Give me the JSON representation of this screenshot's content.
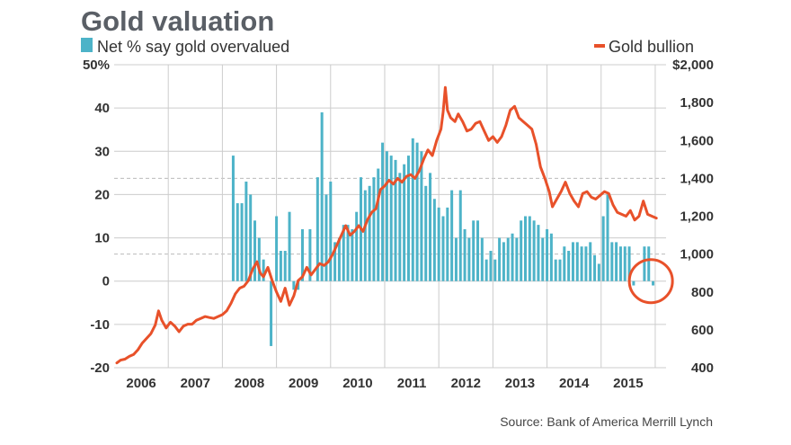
{
  "chart_data": {
    "type": "bar+line",
    "title": "Gold valuation",
    "source": "Source: Bank of America Merrill Lynch",
    "legend": {
      "bars": "Net % say gold overvalued",
      "line": "Gold bullion",
      "placement": "top"
    },
    "colors": {
      "bars": "#4db3c8",
      "line": "#e8512a",
      "title": "#5a5f66",
      "grid": "#cccccc",
      "highlight_circle": "#e8512a"
    },
    "x_axis": {
      "range": [
        2005.5,
        2015.7
      ],
      "ticks": [
        {
          "label": "2006",
          "x": 2006.0
        },
        {
          "label": "2007",
          "x": 2007.0
        },
        {
          "label": "2008",
          "x": 2008.0
        },
        {
          "label": "2009",
          "x": 2009.0
        },
        {
          "label": "2010",
          "x": 2010.0
        },
        {
          "label": "2011",
          "x": 2011.0
        },
        {
          "label": "2012",
          "x": 2012.0
        },
        {
          "label": "2013",
          "x": 2013.0
        },
        {
          "label": "2014",
          "x": 2014.0
        },
        {
          "label": "2015",
          "x": 2015.0
        }
      ]
    },
    "left_axis": {
      "range": [
        -20,
        50
      ],
      "ticks": [
        {
          "label": "50%",
          "v": 50
        },
        {
          "label": "40",
          "v": 40
        },
        {
          "label": "30",
          "v": 30
        },
        {
          "label": "20",
          "v": 20
        },
        {
          "label": "10",
          "v": 10
        },
        {
          "label": "0",
          "v": 0
        },
        {
          "label": "-10",
          "v": -10
        },
        {
          "label": "-20",
          "v": -20
        }
      ]
    },
    "right_axis": {
      "range": [
        400,
        2000
      ],
      "ticks": [
        {
          "label": "$2,000",
          "v": 2000
        },
        {
          "label": "1,800",
          "v": 1800
        },
        {
          "label": "1,600",
          "v": 1600
        },
        {
          "label": "1,400",
          "v": 1400
        },
        {
          "label": "1,200",
          "v": 1200
        },
        {
          "label": "1,000",
          "v": 1000
        },
        {
          "label": "800",
          "v": 800
        },
        {
          "label": "600",
          "v": 600
        },
        {
          "label": "400",
          "v": 400
        }
      ]
    },
    "bars": [
      [
        2007.7,
        29
      ],
      [
        2007.78,
        18
      ],
      [
        2007.86,
        18
      ],
      [
        2007.94,
        23
      ],
      [
        2008.02,
        20
      ],
      [
        2008.1,
        14
      ],
      [
        2008.18,
        10
      ],
      [
        2008.26,
        5
      ],
      [
        2008.4,
        -15
      ],
      [
        2008.5,
        15
      ],
      [
        2008.58,
        7
      ],
      [
        2008.66,
        7
      ],
      [
        2008.74,
        16
      ],
      [
        2008.82,
        -2
      ],
      [
        2008.9,
        -2
      ],
      [
        2008.98,
        12
      ],
      [
        2009.12,
        12
      ],
      [
        2009.26,
        24
      ],
      [
        2009.34,
        39
      ],
      [
        2009.42,
        20
      ],
      [
        2009.5,
        23
      ],
      [
        2009.58,
        9
      ],
      [
        2009.66,
        10
      ],
      [
        2009.74,
        13
      ],
      [
        2009.82,
        13
      ],
      [
        2009.9,
        12
      ],
      [
        2009.98,
        16
      ],
      [
        2010.06,
        24
      ],
      [
        2010.14,
        21
      ],
      [
        2010.22,
        22
      ],
      [
        2010.3,
        24
      ],
      [
        2010.38,
        26
      ],
      [
        2010.46,
        32
      ],
      [
        2010.54,
        30
      ],
      [
        2010.62,
        29
      ],
      [
        2010.7,
        28
      ],
      [
        2010.78,
        25
      ],
      [
        2010.86,
        27
      ],
      [
        2010.94,
        29
      ],
      [
        2011.02,
        33
      ],
      [
        2011.1,
        32
      ],
      [
        2011.18,
        30
      ],
      [
        2011.26,
        22
      ],
      [
        2011.34,
        25
      ],
      [
        2011.42,
        19
      ],
      [
        2011.5,
        17
      ],
      [
        2011.58,
        15
      ],
      [
        2011.66,
        17
      ],
      [
        2011.74,
        21
      ],
      [
        2011.82,
        10
      ],
      [
        2011.9,
        21
      ],
      [
        2011.98,
        12
      ],
      [
        2012.06,
        10
      ],
      [
        2012.14,
        14
      ],
      [
        2012.22,
        14
      ],
      [
        2012.3,
        10
      ],
      [
        2012.38,
        5
      ],
      [
        2012.46,
        7
      ],
      [
        2012.54,
        5
      ],
      [
        2012.62,
        10
      ],
      [
        2012.7,
        9
      ],
      [
        2012.78,
        10
      ],
      [
        2012.86,
        11
      ],
      [
        2012.94,
        10
      ],
      [
        2013.02,
        14
      ],
      [
        2013.1,
        15
      ],
      [
        2013.18,
        15
      ],
      [
        2013.26,
        14
      ],
      [
        2013.34,
        13
      ],
      [
        2013.42,
        10
      ],
      [
        2013.5,
        12
      ],
      [
        2013.58,
        11
      ],
      [
        2013.66,
        5
      ],
      [
        2013.74,
        5
      ],
      [
        2013.82,
        8
      ],
      [
        2013.9,
        7
      ],
      [
        2013.98,
        9
      ],
      [
        2014.06,
        9
      ],
      [
        2014.14,
        8
      ],
      [
        2014.22,
        8
      ],
      [
        2014.3,
        9
      ],
      [
        2014.38,
        6
      ],
      [
        2014.46,
        4
      ],
      [
        2014.54,
        15
      ],
      [
        2014.62,
        20
      ],
      [
        2014.7,
        9
      ],
      [
        2014.78,
        9
      ],
      [
        2014.86,
        8
      ],
      [
        2014.94,
        8
      ],
      [
        2015.02,
        8
      ],
      [
        2015.1,
        -1
      ],
      [
        2015.3,
        8
      ],
      [
        2015.38,
        8
      ],
      [
        2015.46,
        -1
      ]
    ],
    "line": [
      [
        2005.55,
        425
      ],
      [
        2005.62,
        440
      ],
      [
        2005.7,
        445
      ],
      [
        2005.78,
        460
      ],
      [
        2005.86,
        470
      ],
      [
        2005.94,
        495
      ],
      [
        2006.02,
        530
      ],
      [
        2006.1,
        555
      ],
      [
        2006.18,
        580
      ],
      [
        2006.26,
        625
      ],
      [
        2006.32,
        700
      ],
      [
        2006.38,
        650
      ],
      [
        2006.46,
        610
      ],
      [
        2006.54,
        640
      ],
      [
        2006.62,
        620
      ],
      [
        2006.7,
        590
      ],
      [
        2006.78,
        620
      ],
      [
        2006.86,
        630
      ],
      [
        2006.94,
        630
      ],
      [
        2007.02,
        650
      ],
      [
        2007.1,
        660
      ],
      [
        2007.18,
        670
      ],
      [
        2007.26,
        665
      ],
      [
        2007.34,
        660
      ],
      [
        2007.42,
        670
      ],
      [
        2007.5,
        680
      ],
      [
        2007.58,
        700
      ],
      [
        2007.66,
        740
      ],
      [
        2007.74,
        790
      ],
      [
        2007.82,
        820
      ],
      [
        2007.9,
        830
      ],
      [
        2007.98,
        860
      ],
      [
        2008.06,
        920
      ],
      [
        2008.14,
        960
      ],
      [
        2008.2,
        900
      ],
      [
        2008.26,
        880
      ],
      [
        2008.34,
        930
      ],
      [
        2008.42,
        860
      ],
      [
        2008.5,
        800
      ],
      [
        2008.58,
        750
      ],
      [
        2008.66,
        820
      ],
      [
        2008.74,
        730
      ],
      [
        2008.82,
        780
      ],
      [
        2008.9,
        860
      ],
      [
        2008.98,
        880
      ],
      [
        2009.06,
        930
      ],
      [
        2009.14,
        890
      ],
      [
        2009.22,
        920
      ],
      [
        2009.3,
        950
      ],
      [
        2009.38,
        940
      ],
      [
        2009.46,
        960
      ],
      [
        2009.54,
        1000
      ],
      [
        2009.62,
        1050
      ],
      [
        2009.7,
        1100
      ],
      [
        2009.78,
        1150
      ],
      [
        2009.86,
        1100
      ],
      [
        2009.94,
        1120
      ],
      [
        2010.02,
        1150
      ],
      [
        2010.1,
        1120
      ],
      [
        2010.18,
        1180
      ],
      [
        2010.26,
        1220
      ],
      [
        2010.34,
        1240
      ],
      [
        2010.42,
        1340
      ],
      [
        2010.5,
        1360
      ],
      [
        2010.58,
        1390
      ],
      [
        2010.66,
        1370
      ],
      [
        2010.74,
        1400
      ],
      [
        2010.82,
        1380
      ],
      [
        2010.9,
        1410
      ],
      [
        2010.98,
        1420
      ],
      [
        2011.06,
        1400
      ],
      [
        2011.14,
        1440
      ],
      [
        2011.22,
        1500
      ],
      [
        2011.3,
        1550
      ],
      [
        2011.38,
        1520
      ],
      [
        2011.46,
        1600
      ],
      [
        2011.54,
        1660
      ],
      [
        2011.58,
        1750
      ],
      [
        2011.62,
        1880
      ],
      [
        2011.66,
        1760
      ],
      [
        2011.72,
        1720
      ],
      [
        2011.8,
        1700
      ],
      [
        2011.86,
        1740
      ],
      [
        2011.94,
        1700
      ],
      [
        2012.02,
        1650
      ],
      [
        2012.1,
        1660
      ],
      [
        2012.18,
        1690
      ],
      [
        2012.26,
        1700
      ],
      [
        2012.34,
        1650
      ],
      [
        2012.42,
        1600
      ],
      [
        2012.5,
        1620
      ],
      [
        2012.58,
        1590
      ],
      [
        2012.66,
        1620
      ],
      [
        2012.74,
        1680
      ],
      [
        2012.82,
        1760
      ],
      [
        2012.9,
        1780
      ],
      [
        2012.98,
        1720
      ],
      [
        2013.06,
        1700
      ],
      [
        2013.14,
        1680
      ],
      [
        2013.22,
        1660
      ],
      [
        2013.3,
        1580
      ],
      [
        2013.38,
        1460
      ],
      [
        2013.46,
        1400
      ],
      [
        2013.54,
        1330
      ],
      [
        2013.6,
        1250
      ],
      [
        2013.68,
        1290
      ],
      [
        2013.76,
        1330
      ],
      [
        2013.84,
        1380
      ],
      [
        2013.92,
        1320
      ],
      [
        2014.0,
        1280
      ],
      [
        2014.08,
        1250
      ],
      [
        2014.16,
        1320
      ],
      [
        2014.24,
        1330
      ],
      [
        2014.32,
        1300
      ],
      [
        2014.4,
        1290
      ],
      [
        2014.48,
        1310
      ],
      [
        2014.56,
        1330
      ],
      [
        2014.64,
        1320
      ],
      [
        2014.72,
        1260
      ],
      [
        2014.8,
        1220
      ],
      [
        2014.88,
        1210
      ],
      [
        2014.96,
        1200
      ],
      [
        2015.04,
        1230
      ],
      [
        2015.12,
        1180
      ],
      [
        2015.2,
        1200
      ],
      [
        2015.28,
        1280
      ],
      [
        2015.36,
        1210
      ],
      [
        2015.44,
        1200
      ],
      [
        2015.52,
        1190
      ]
    ],
    "highlight": {
      "x": 2015.42,
      "bar_value": 0
    }
  }
}
